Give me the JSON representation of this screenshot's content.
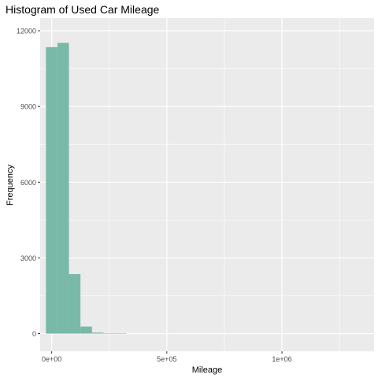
{
  "chart_data": {
    "type": "bar",
    "title": "Histogram of Used Car Mileage",
    "xlabel": "Mileage",
    "ylabel": "Frequency",
    "bin_width": 50000,
    "bins": [
      {
        "start": -25000,
        "end": 25000,
        "count": 11350
      },
      {
        "start": 25000,
        "end": 75000,
        "count": 11520
      },
      {
        "start": 75000,
        "end": 125000,
        "count": 2360
      },
      {
        "start": 125000,
        "end": 175000,
        "count": 280
      },
      {
        "start": 175000,
        "end": 225000,
        "count": 40
      },
      {
        "start": 225000,
        "end": 275000,
        "count": 8
      },
      {
        "start": 275000,
        "end": 325000,
        "count": 3
      }
    ],
    "xlim": [
      -50000,
      1400000
    ],
    "ylim": [
      -700,
      12500
    ],
    "x_ticks": [
      {
        "value": 0,
        "label": "0e+00"
      },
      {
        "value": 500000,
        "label": "5e+05"
      },
      {
        "value": 1000000,
        "label": "1e+06"
      }
    ],
    "x_minor_ticks": [
      250000,
      750000,
      1250000
    ],
    "y_ticks": [
      {
        "value": 0,
        "label": "0"
      },
      {
        "value": 3000,
        "label": "3000"
      },
      {
        "value": 6000,
        "label": "6000"
      },
      {
        "value": 9000,
        "label": "9000"
      },
      {
        "value": 12000,
        "label": "12000"
      }
    ],
    "y_minor_ticks": [
      1500,
      4500,
      7500,
      10500
    ],
    "grid": true,
    "bar_color": "#79b9a8",
    "panel_color": "#ebebeb",
    "grid_color": "#ffffff"
  }
}
